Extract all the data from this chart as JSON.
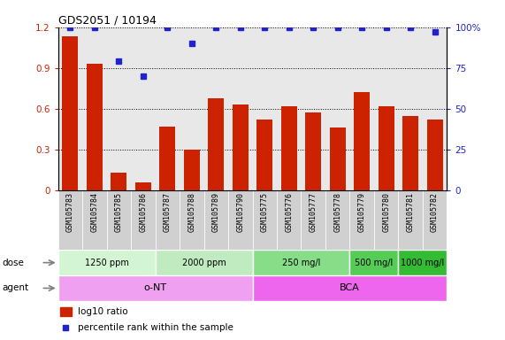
{
  "title": "GDS2051 / 10194",
  "samples": [
    "GSM105783",
    "GSM105784",
    "GSM105785",
    "GSM105786",
    "GSM105787",
    "GSM105788",
    "GSM105789",
    "GSM105790",
    "GSM105775",
    "GSM105776",
    "GSM105777",
    "GSM105778",
    "GSM105779",
    "GSM105780",
    "GSM105781",
    "GSM105782"
  ],
  "log10_ratio": [
    1.13,
    0.93,
    0.13,
    0.06,
    0.47,
    0.3,
    0.68,
    0.63,
    0.52,
    0.62,
    0.57,
    0.46,
    0.72,
    0.62,
    0.55,
    0.52
  ],
  "percentile_rank": [
    100,
    100,
    79,
    70,
    100,
    90,
    100,
    100,
    100,
    100,
    100,
    100,
    100,
    100,
    100,
    97
  ],
  "bar_color": "#cc2200",
  "dot_color": "#2222cc",
  "ylim_left": [
    0,
    1.2
  ],
  "ylim_right": [
    0,
    100
  ],
  "yticks_left": [
    0,
    0.3,
    0.6,
    0.9,
    1.2
  ],
  "yticks_right": [
    0,
    25,
    50,
    75,
    100
  ],
  "ytick_labels_left": [
    "0",
    "0.3",
    "0.6",
    "0.9",
    "1.2"
  ],
  "ytick_labels_right": [
    "0",
    "25",
    "50",
    "75",
    "100%"
  ],
  "dose_groups": [
    {
      "label": "1250 ppm",
      "start": 0,
      "end": 4,
      "color": "#d4f5d4"
    },
    {
      "label": "2000 ppm",
      "start": 4,
      "end": 8,
      "color": "#c0ebc0"
    },
    {
      "label": "250 mg/l",
      "start": 8,
      "end": 12,
      "color": "#88dd88"
    },
    {
      "label": "500 mg/l",
      "start": 12,
      "end": 14,
      "color": "#55cc55"
    },
    {
      "label": "1000 mg/l",
      "start": 14,
      "end": 16,
      "color": "#33bb33"
    }
  ],
  "agent_groups": [
    {
      "label": "o-NT",
      "start": 0,
      "end": 8,
      "color": "#f0a0f0"
    },
    {
      "label": "BCA",
      "start": 8,
      "end": 16,
      "color": "#ee66ee"
    }
  ],
  "legend_items": [
    {
      "color": "#cc2200",
      "label": "log10 ratio"
    },
    {
      "color": "#2222cc",
      "label": "percentile rank within the sample"
    }
  ],
  "plot_bg": "#e8e8e8",
  "label_bg": "#d0d0d0",
  "background_color": "#ffffff"
}
